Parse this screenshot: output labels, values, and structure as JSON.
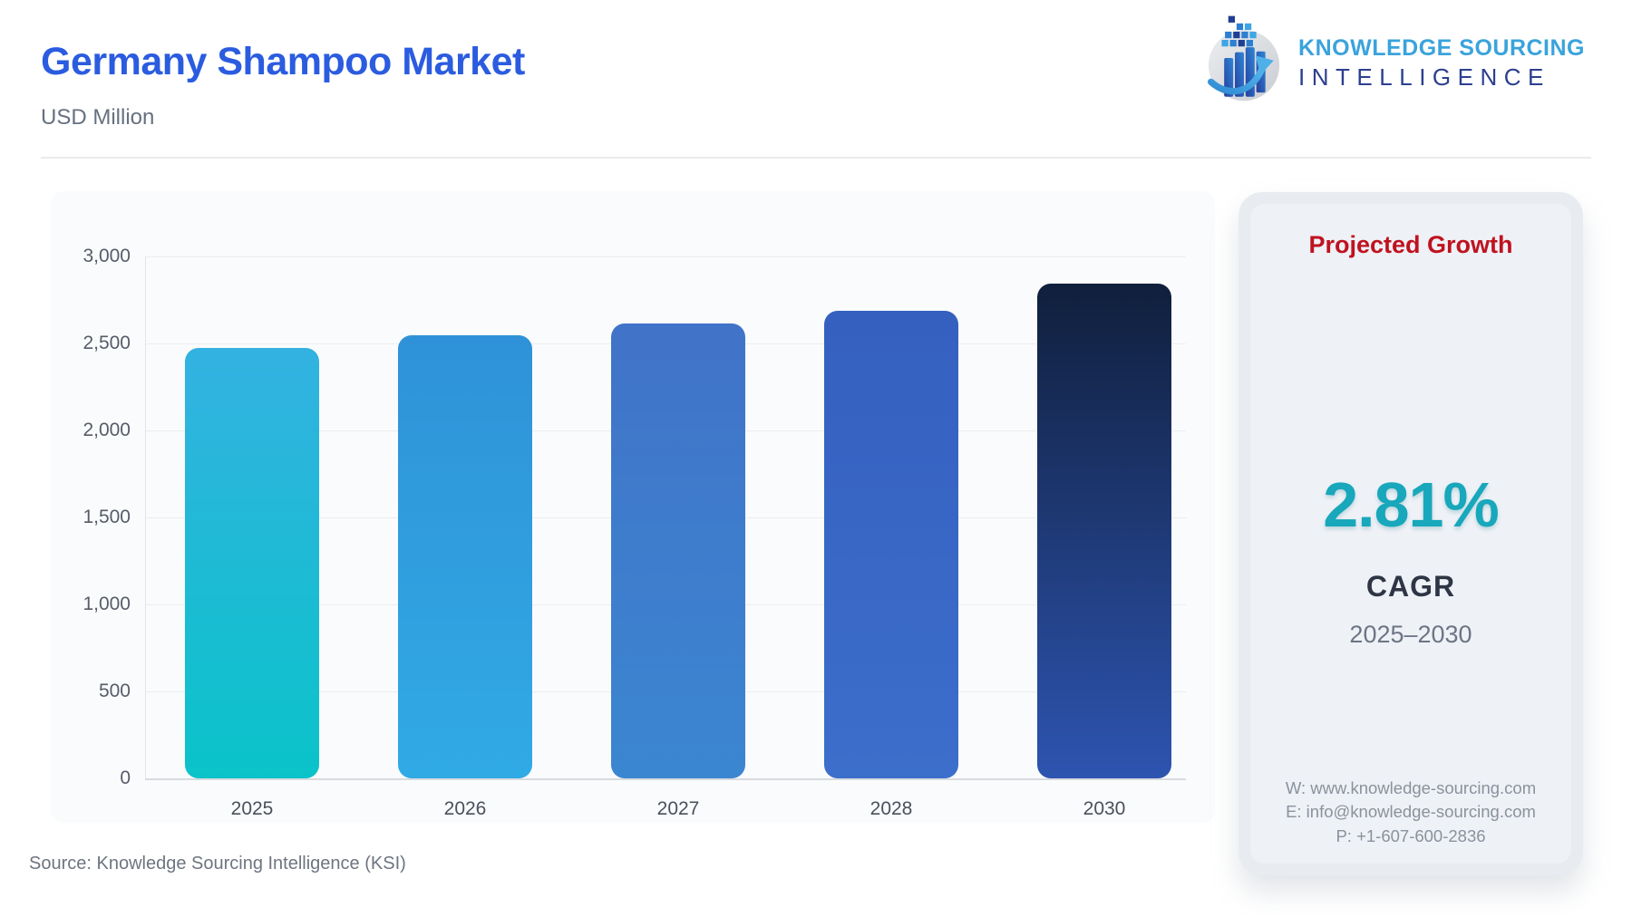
{
  "header": {
    "title": "Germany Shampoo Market",
    "subtitle": "USD Million",
    "logo": {
      "line1": "KNOWLEDGE SOURCING",
      "line2": "INTELLIGENCE"
    }
  },
  "chart_data": {
    "type": "bar",
    "title": "Germany Shampoo Market",
    "units": "USD Million",
    "categories": [
      "2025",
      "2026",
      "2027",
      "2028",
      "2030"
    ],
    "values": [
      2475,
      2545,
      2615,
      2690,
      2845
    ],
    "ylim": [
      0,
      3000
    ],
    "yticks": [
      0,
      500,
      1000,
      1500,
      2000,
      2500,
      3000
    ],
    "ytick_labels": [
      "0",
      "500",
      "1,000",
      "1,500",
      "2,000",
      "2,500",
      "3,000"
    ],
    "grid": true,
    "legend": "none",
    "bar_gradients": [
      [
        "#33b2e1",
        "#0ac3c9"
      ],
      [
        "#2f92d8",
        "#30aae4"
      ],
      [
        "#4173c8",
        "#3b86d1"
      ],
      [
        "#3560c0",
        "#3c6ecb"
      ],
      [
        "#101f3c",
        "#2d54b0"
      ]
    ]
  },
  "growth_panel": {
    "title": "Projected Growth",
    "value": "2.81%",
    "metric": "CAGR",
    "period": "2025–2030",
    "contact": {
      "website": "W: www.knowledge-sourcing.com",
      "email": "E: info@knowledge-sourcing.com",
      "phone": "P: +1-607-600-2836"
    }
  },
  "footer": {
    "source": "Source: Knowledge Sourcing Intelligence (KSI)"
  },
  "colors": {
    "title_blue": "#2b5ce0",
    "growth_red": "#c0121f",
    "cagr_teal": "#18a7bb",
    "logo_light_blue": "#3aa3dc",
    "logo_indigo": "#2c3f8f",
    "panel_bg": "#eef1f6",
    "card_bg": "#fafbfc"
  }
}
